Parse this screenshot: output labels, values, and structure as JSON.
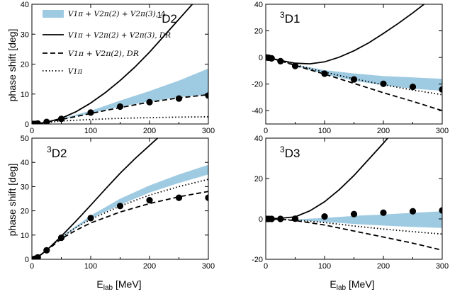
{
  "figure": {
    "ylabel": "phase shift  [deg]",
    "xlabel_main": "E",
    "xlabel_sub": "lab",
    "xlabel_unit": " [MeV]",
    "xticks": [
      0,
      100,
      200,
      300
    ]
  },
  "legend": {
    "entries": [
      {
        "id": "band",
        "text": "V1π + V2π(2) + V2π(3), Λ",
        "style": "band"
      },
      {
        "id": "solid",
        "text": "V1π + V2π(2) + V2π(3), DR",
        "style": "solid"
      },
      {
        "id": "dashed",
        "text": "V1π + V2π(2), DR",
        "style": "dashed"
      },
      {
        "id": "dotted",
        "text": "V1π",
        "style": "dotted"
      }
    ],
    "placement": "top-left of first panel"
  },
  "colors": {
    "band": "#9fcbe2",
    "line": "#000000"
  },
  "chart_data": [
    {
      "type": "line",
      "panel": "1D2",
      "wave_label": "1D2",
      "title": "",
      "xlabel": "",
      "ylabel": "phase shift  [deg]",
      "xlim": [
        0,
        300
      ],
      "ylim": [
        0,
        40
      ],
      "yticks": [
        0,
        10,
        20,
        30,
        40
      ],
      "series": [
        {
          "name": "solid",
          "x": [
            0,
            10,
            25,
            50,
            75,
            100,
            125,
            150,
            175,
            200,
            225,
            250,
            275,
            300
          ],
          "values": [
            0,
            0.1,
            0.6,
            1.9,
            4.1,
            7.0,
            10.5,
            14.5,
            19.0,
            24.0,
            29.5,
            35.0,
            40.5,
            46.0
          ]
        },
        {
          "name": "dashed",
          "x": [
            0,
            10,
            25,
            50,
            100,
            150,
            200,
            250,
            300
          ],
          "values": [
            0,
            0.1,
            0.6,
            1.5,
            3.5,
            5.5,
            7.3,
            8.7,
            9.8
          ]
        },
        {
          "name": "dotted",
          "x": [
            0,
            10,
            25,
            50,
            100,
            150,
            200,
            250,
            300
          ],
          "values": [
            0,
            0.1,
            0.5,
            1.0,
            1.5,
            1.9,
            2.1,
            2.3,
            2.4
          ]
        },
        {
          "name": "band",
          "x": [
            50,
            100,
            150,
            200,
            250,
            300
          ],
          "lower": [
            1.6,
            3.6,
            5.8,
            7.5,
            9.0,
            9.8
          ],
          "upper": [
            1.8,
            4.4,
            7.8,
            11.0,
            14.5,
            18.5
          ]
        },
        {
          "name": "data",
          "x": [
            1,
            5,
            10,
            25,
            50,
            100,
            150,
            200,
            250,
            300
          ],
          "values": [
            0,
            0.04,
            0.16,
            0.68,
            1.7,
            3.8,
            5.8,
            7.3,
            8.5,
            9.5
          ]
        }
      ]
    },
    {
      "type": "line",
      "panel": "3D1",
      "wave_label": "3D1",
      "title": "",
      "xlabel": "",
      "ylabel": "",
      "xlim": [
        0,
        300
      ],
      "ylim": [
        -50,
        40
      ],
      "yticks": [
        -40,
        -20,
        0,
        20,
        40
      ],
      "series": [
        {
          "name": "solid",
          "x": [
            0,
            10,
            25,
            50,
            75,
            100,
            125,
            150,
            175,
            200,
            225,
            250,
            275
          ],
          "values": [
            0,
            -0.7,
            -2.3,
            -4.3,
            -4.8,
            -3.3,
            0.2,
            5.0,
            11.0,
            18.0,
            25.5,
            33.5,
            42.0
          ]
        },
        {
          "name": "dashed",
          "x": [
            0,
            10,
            25,
            50,
            100,
            150,
            200,
            250,
            300
          ],
          "values": [
            0,
            -0.7,
            -2.6,
            -6.0,
            -12.5,
            -19.5,
            -26.5,
            -33.0,
            -40.0
          ]
        },
        {
          "name": "dotted",
          "x": [
            0,
            10,
            25,
            50,
            100,
            150,
            200,
            250,
            300
          ],
          "values": [
            0,
            -0.7,
            -2.5,
            -5.5,
            -11.0,
            -16.0,
            -20.5,
            -24.5,
            -28.0
          ]
        },
        {
          "name": "band",
          "x": [
            50,
            100,
            150,
            200,
            250,
            300
          ],
          "lower": [
            -6.2,
            -12.5,
            -17.5,
            -21.0,
            -23.5,
            -25.0
          ],
          "upper": [
            -5.4,
            -9.5,
            -12.0,
            -14.0,
            -15.0,
            -16.0
          ]
        },
        {
          "name": "data",
          "x": [
            1,
            5,
            10,
            25,
            50,
            100,
            150,
            200,
            250,
            300
          ],
          "values": [
            0,
            -0.2,
            -0.7,
            -2.8,
            -6.4,
            -12.2,
            -16.5,
            -19.8,
            -22.1,
            -24.1
          ]
        }
      ]
    },
    {
      "type": "line",
      "panel": "3D2",
      "wave_label": "3D2",
      "title": "",
      "xlabel": "E_lab [MeV]",
      "ylabel": "phase shift  [deg]",
      "xlim": [
        0,
        300
      ],
      "ylim": [
        0,
        50
      ],
      "yticks": [
        0,
        10,
        20,
        30,
        40,
        50
      ],
      "series": [
        {
          "name": "solid",
          "x": [
            0,
            10,
            25,
            50,
            75,
            100,
            125,
            150,
            175,
            200,
            225,
            250
          ],
          "values": [
            0,
            1.0,
            3.7,
            9.5,
            15.8,
            22.3,
            29.0,
            35.5,
            41.5,
            47.0,
            52.5,
            58.0
          ]
        },
        {
          "name": "dashed",
          "x": [
            0,
            10,
            25,
            50,
            75,
            100,
            150,
            200,
            250,
            300
          ],
          "values": [
            0,
            1.0,
            3.5,
            8.5,
            12.0,
            15.0,
            19.5,
            23.0,
            25.8,
            28.0
          ]
        },
        {
          "name": "dotted",
          "x": [
            0,
            10,
            25,
            50,
            75,
            100,
            150,
            200,
            250,
            300
          ],
          "values": [
            0,
            1.0,
            3.7,
            9.0,
            13.2,
            16.5,
            22.0,
            26.5,
            30.0,
            33.0
          ]
        },
        {
          "name": "band",
          "x": [
            50,
            100,
            150,
            200,
            250,
            300
          ],
          "lower": [
            8.8,
            16.8,
            22.5,
            27.5,
            31.5,
            35.0
          ],
          "upper": [
            9.4,
            18.0,
            25.0,
            30.5,
            35.0,
            39.0
          ]
        },
        {
          "name": "data",
          "x": [
            1,
            5,
            10,
            25,
            50,
            100,
            150,
            200,
            250,
            300
          ],
          "values": [
            0,
            0.2,
            0.8,
            3.7,
            8.9,
            17.0,
            22.0,
            24.4,
            25.4,
            25.4
          ]
        }
      ]
    },
    {
      "type": "line",
      "panel": "3D3",
      "wave_label": "3D3",
      "title": "",
      "xlabel": "E_lab [MeV]",
      "ylabel": "",
      "xlim": [
        0,
        300
      ],
      "ylim": [
        -20,
        40
      ],
      "yticks": [
        -20,
        0,
        20,
        40
      ],
      "series": [
        {
          "name": "solid",
          "x": [
            0,
            10,
            25,
            50,
            75,
            100,
            125,
            150,
            175,
            200,
            225
          ],
          "values": [
            0,
            0.1,
            0.3,
            1.0,
            4.0,
            8.5,
            14.5,
            21.5,
            29.5,
            37.5,
            46.0
          ]
        },
        {
          "name": "dashed",
          "x": [
            0,
            25,
            50,
            100,
            150,
            200,
            250,
            300
          ],
          "values": [
            0,
            -0.2,
            -0.8,
            -3.0,
            -6.0,
            -9.0,
            -12.0,
            -15.5
          ]
        },
        {
          "name": "dotted",
          "x": [
            0,
            25,
            50,
            100,
            150,
            200,
            250,
            300
          ],
          "values": [
            0,
            -0.2,
            -0.6,
            -1.8,
            -3.5,
            -5.0,
            -6.3,
            -7.5
          ]
        },
        {
          "name": "band",
          "x": [
            50,
            100,
            150,
            200,
            250,
            300
          ],
          "lower": [
            -0.6,
            -1.5,
            -2.5,
            -3.3,
            -4.0,
            -4.5
          ],
          "upper": [
            -0.2,
            0.5,
            1.5,
            2.2,
            3.0,
            3.8
          ]
        },
        {
          "name": "data",
          "x": [
            1,
            5,
            10,
            25,
            50,
            100,
            150,
            200,
            250,
            300
          ],
          "values": [
            0,
            0,
            0,
            0,
            0.1,
            1.2,
            2.4,
            3.1,
            3.8,
            4.2
          ]
        }
      ]
    }
  ]
}
